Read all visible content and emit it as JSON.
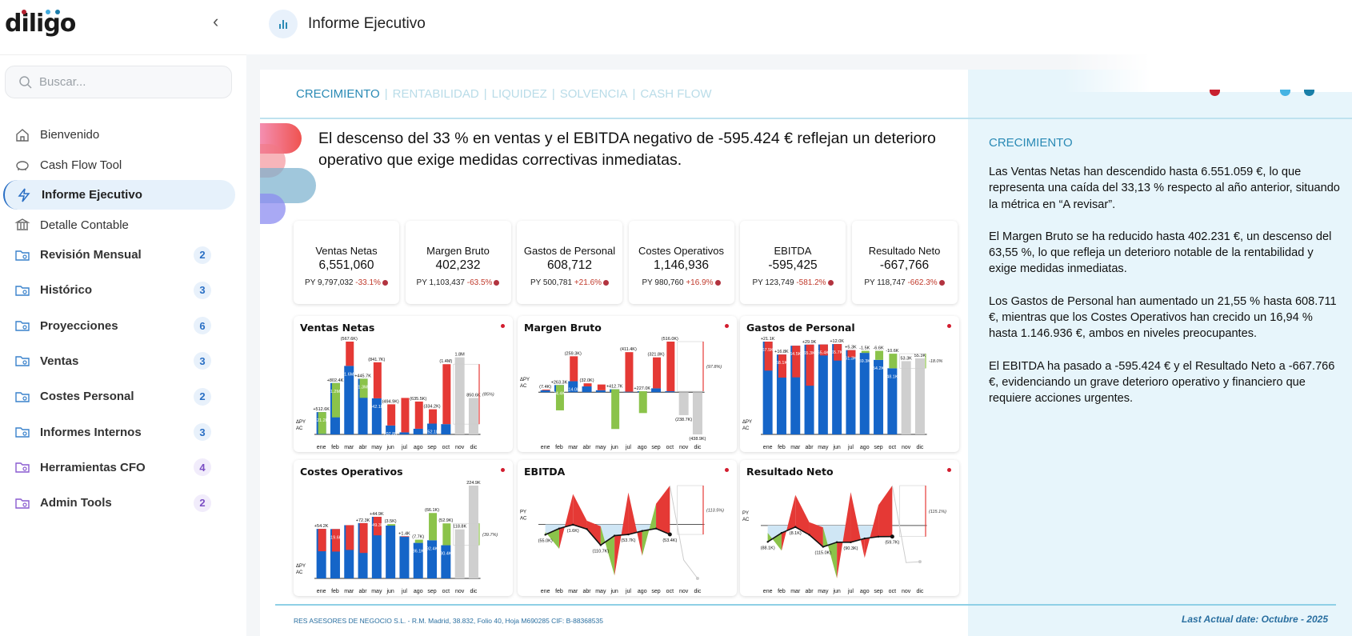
{
  "brand": {
    "logo": "diligo",
    "dot_colors": [
      "#b3202e",
      "#3fa9dd",
      "#1b7ba8"
    ]
  },
  "sidebar": {
    "search_placeholder": "Buscar...",
    "items": [
      {
        "label": "Bienvenido",
        "icon": "home-icon"
      },
      {
        "label": "Cash Flow Tool",
        "icon": "piggy-bank-icon"
      },
      {
        "label": "Informe Ejecutivo",
        "icon": "lightning-icon",
        "active": true
      },
      {
        "label": "Detalle Contable",
        "icon": "bank-icon"
      }
    ],
    "folders": [
      {
        "label": "Revisión Mensual",
        "count": "2",
        "color": "blue"
      },
      {
        "label": "Histórico",
        "count": "3",
        "color": "blue"
      },
      {
        "label": "Proyecciones",
        "count": "6",
        "color": "blue"
      },
      {
        "label": "Ventas",
        "count": "3",
        "color": "blue"
      },
      {
        "label": "Costes Personal",
        "count": "2",
        "color": "blue"
      },
      {
        "label": "Informes Internos",
        "count": "3",
        "color": "blue"
      },
      {
        "label": "Herramientas CFO",
        "count": "4",
        "color": "purple"
      },
      {
        "label": "Admin Tools",
        "count": "2",
        "color": "purple"
      }
    ]
  },
  "header": {
    "title": "Informe Ejecutivo"
  },
  "tabs": {
    "active": "CRECIMIENTO",
    "rest": [
      "|",
      "RENTABILIDAD",
      "|",
      "LIQUIDEZ",
      "|",
      "SOLVENCIA",
      "|",
      "CASH FLOW"
    ]
  },
  "headline": "El descenso del 33 % en ventas y el EBITDA negativo de -595.424 € reflejan un deterioro operativo que exige medidas correctivas inmediatas.",
  "kpis": [
    {
      "title": "Ventas Netas",
      "value": "6,551,060",
      "py": "PY 9,797,032",
      "delta": "-33.1%"
    },
    {
      "title": "Margen Bruto",
      "value": "402,232",
      "py": "PY 1,103,437",
      "delta": "-63.5%"
    },
    {
      "title": "Gastos de Personal",
      "value": "608,712",
      "py": "PY 500,781",
      "delta": "+21.6%"
    },
    {
      "title": "Costes Operativos",
      "value": "1,146,936",
      "py": "PY 980,760",
      "delta": "+16.9%"
    },
    {
      "title": "EBITDA",
      "value": "-595,425",
      "py": "PY 123,749",
      "delta": "-581.2%"
    },
    {
      "title": "Resultado Neto",
      "value": "-667,766",
      "py": "PY 118,747",
      "delta": "-662.3%"
    }
  ],
  "colors": {
    "ac": "#1565c8",
    "bad": "#e53935",
    "good": "#8bc34a",
    "forecast": "#cfcfcf",
    "accent": "#2a8ab5"
  },
  "months": [
    "ene",
    "feb",
    "mar",
    "abr",
    "may",
    "jun",
    "jul",
    "ago",
    "sep",
    "oct",
    "nov",
    "dic"
  ],
  "charts": [
    {
      "title": "Ventas Netas",
      "type": "bar",
      "higher_is_good": true,
      "unit": "K",
      "ac": [
        521.2,
        1200,
        1600,
        1300,
        842.1,
        207.8,
        48,
        132,
        252.1,
        240
      ],
      "py": [
        8.6,
        397.6,
        2167.6,
        854.3,
        1683.8,
        702.7,
        852,
        767.5,
        586.3,
        1640
      ],
      "ac_labels": [
        "521.2K",
        "1.2M",
        "1.6M",
        "1.3M",
        "842.1K",
        "207.8K",
        "",
        "",
        "252.1K",
        ""
      ],
      "delta_labels": [
        "+512.6K",
        "+802.4K",
        "(567.6K)",
        "+445.7K",
        "(841.7K)",
        "(494.9K)",
        "",
        "(635.5K)",
        "(334.2K)",
        "(1.4M)"
      ],
      "forecast": [
        1800,
        850.6
      ],
      "forecast_labels": [
        "1.8M",
        "850.6K"
      ],
      "annotation": "(85%)",
      "row_labels": [
        "ΔPY",
        "AC"
      ]
    },
    {
      "title": "Margen Bruto",
      "type": "bar",
      "higher_is_good": true,
      "unit": "K",
      "ac": [
        20,
        74.4,
        114,
        60,
        20,
        30,
        5,
        10,
        40,
        10
      ],
      "py": [
        27.4,
        -188.9,
        373.3,
        92,
        80,
        -382.7,
        416.4,
        -217,
        361.8,
        526
      ],
      "ac_labels": [
        "",
        "74.4K",
        "114.0K",
        "",
        "",
        "",
        "",
        "",
        "",
        ""
      ],
      "delta_labels": [
        "(7.4K)",
        "+263.3K",
        "(259.3K)",
        "(32.0K)",
        "",
        "+412.7K",
        "(411.4K)",
        "+227.0K",
        "(321.8K)",
        "(516.0K)"
      ],
      "forecast": [
        -238.7,
        -438.9
      ],
      "forecast_labels": [
        "(238.7K)",
        "(438.9K)"
      ],
      "annotation": "(97.8%)",
      "row_labels": [
        "ΔPY",
        "AC"
      ]
    },
    {
      "title": "Gastos de Personal",
      "type": "bar",
      "higher_is_good": false,
      "unit": "K",
      "ac": [
        67.5,
        58.1,
        64.5,
        65.3,
        65.4,
        65.7,
        61.3,
        59.3,
        54.2,
        48.1
      ],
      "py": [
        46.4,
        41.3,
        41.5,
        35.4,
        57.4,
        53.7,
        56,
        60.8,
        60.8,
        58.7
      ],
      "ac_labels": [
        "67.5K",
        "58.1K",
        "64.5K",
        "65.3K",
        "65.4K",
        "65.7K",
        "61.3K",
        "59.3K",
        "54.2K",
        "48.1K"
      ],
      "delta_labels": [
        "+21.1K",
        "+16.8K",
        "",
        "+29.9K",
        "",
        "+12.0K",
        "+5.3K",
        "-1.5K",
        "-6.6K",
        "-10.6K"
      ],
      "forecast": [
        53.3,
        55.3
      ],
      "forecast_labels": [
        "53.3K",
        "55.3K"
      ],
      "annotation": "-18.0%",
      "row_labels": [
        "ΔPY",
        "AC"
      ]
    },
    {
      "title": "Costes Operativos",
      "type": "bar",
      "higher_is_good": false,
      "unit": "K",
      "ac": [
        120,
        119.6,
        129,
        134,
        149.3,
        128,
        102,
        86.1,
        92.4,
        80.4
      ],
      "py": [
        65.8,
        65,
        69,
        61.7,
        104.4,
        131.5,
        100.6,
        93.8,
        158.5,
        133.3
      ],
      "ac_labels": [
        "",
        "119.6K",
        "",
        "",
        "149.3K",
        "",
        "",
        "86.1K",
        "92.4K",
        "80.4K"
      ],
      "delta_labels": [
        "+54.2K",
        "",
        "",
        "+72.3K",
        "+44.9K",
        "(3.5K)",
        "+1.4K",
        "(7.7K)",
        "(66.1K)",
        "(52.9K)"
      ],
      "forecast": [
        118.8,
        224.9
      ],
      "forecast_labels": [
        "118.8K",
        "224.9K"
      ],
      "annotation": "(39.7%)",
      "row_labels": [
        "ΔPY",
        "AC"
      ]
    },
    {
      "title": "EBITDA",
      "type": "line",
      "unit": "K",
      "ac": [
        -55,
        -22,
        -1.6,
        -25,
        -110.7,
        -60,
        -53.7,
        -35,
        -22,
        -53.4
      ],
      "py": [
        -40,
        -130,
        162,
        20,
        -10,
        -273,
        170,
        -168,
        110,
        207
      ],
      "ac_labels": [
        "(55.0K)",
        "",
        "(1.6K)",
        "",
        "(110.7K)",
        "",
        "(53.7K)",
        "",
        "",
        "(53.4K)"
      ],
      "forecast": [
        -190,
        -288
      ],
      "annotation": "(113.5%)",
      "row_labels": [
        "PY",
        "AC"
      ]
    },
    {
      "title": "Resultado Neto",
      "type": "line",
      "unit": "K",
      "ac": [
        -88.1,
        -40,
        -8.1,
        -50,
        -115,
        -90,
        -90.3,
        -70,
        -60,
        -59.7
      ],
      "py": [
        -40,
        -135,
        165,
        18,
        -10,
        -285,
        180,
        -175,
        110,
        215
      ],
      "ac_labels": [
        "(88.1K)",
        "",
        "(8.1K)",
        "",
        "(115.0K)",
        "",
        "(90.3K)",
        "",
        "",
        "(59.7K)"
      ],
      "forecast": [
        -200,
        -195
      ],
      "annotation": "(115.1%)",
      "row_labels": [
        "PY",
        "AC"
      ]
    }
  ],
  "right_panel": {
    "title": "CRECIMIENTO",
    "paragraphs": [
      "Las Ventas Netas han descendido hasta 6.551.059 €, lo que representa una caída del 33,13 % respecto al año anterior, situando la métrica en “A revisar”.",
      "El Margen Bruto se ha reducido hasta 402.231 €, un descenso del 63,55 %, lo que refleja un deterioro notable de la rentabilidad y exige medidas inmediatas.",
      "Los Gastos de Personal han aumentado un 21,55 % hasta 608.711 €, mientras que los Costes Operativos han crecido un 16,94 % hasta 1.146.936 €, ambos en niveles preocupantes.",
      "El EBITDA ha pasado a -595.424 € y el Resultado Neto a -667.766 €, evidenciando un grave deterioro operativo y financiero que requiere acciones urgentes."
    ]
  },
  "footer": {
    "company": "RES ASESORES DE NEGOCIO S.L. - R.M. Madrid, 38.832, Folio 40, Hoja M690285  CIF: B-88368535",
    "last_date": "Last Actual date: Octubre - 2025"
  }
}
